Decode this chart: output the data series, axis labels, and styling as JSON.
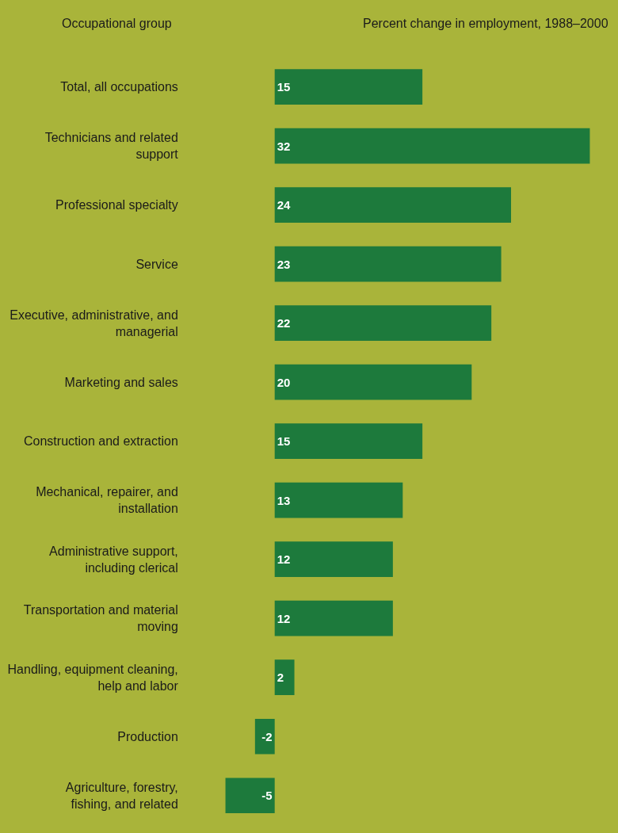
{
  "chart_data": {
    "type": "bar",
    "orientation": "horizontal",
    "title": "Percent change in employment, 1988–2000",
    "ylabel": "Occupational group",
    "categories": [
      "Total, all occupations",
      "Technicians and related support",
      "Professional specialty",
      "Service",
      "Executive, administrative, and managerial",
      "Marketing and sales",
      "Construction and extraction",
      "Mechanical, repairer, and installation",
      "Administrative support, including clerical",
      "Transportation and material moving",
      "Handling, equipment cleaning, help and labor",
      "Production",
      "Agriculture, forestry, fishing, and related"
    ],
    "values": [
      15,
      32,
      24,
      23,
      22,
      20,
      15,
      13,
      12,
      12,
      2,
      -2,
      -5
    ],
    "color": "#1d7a3c",
    "data_labels": true
  }
}
